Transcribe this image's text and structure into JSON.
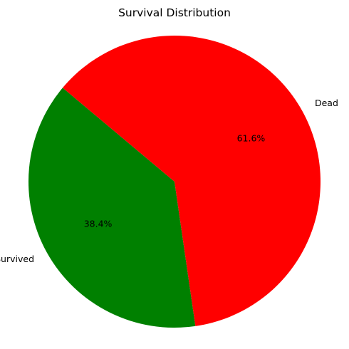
{
  "chart_data": {
    "type": "pie",
    "title": "Survival Distribution",
    "categories": [
      "Survived",
      "Dead"
    ],
    "values": [
      38.4,
      61.6
    ],
    "percent_labels": [
      "38.4%",
      "61.6%"
    ],
    "colors": [
      "#008000",
      "#ff0000"
    ],
    "legend": "none"
  }
}
